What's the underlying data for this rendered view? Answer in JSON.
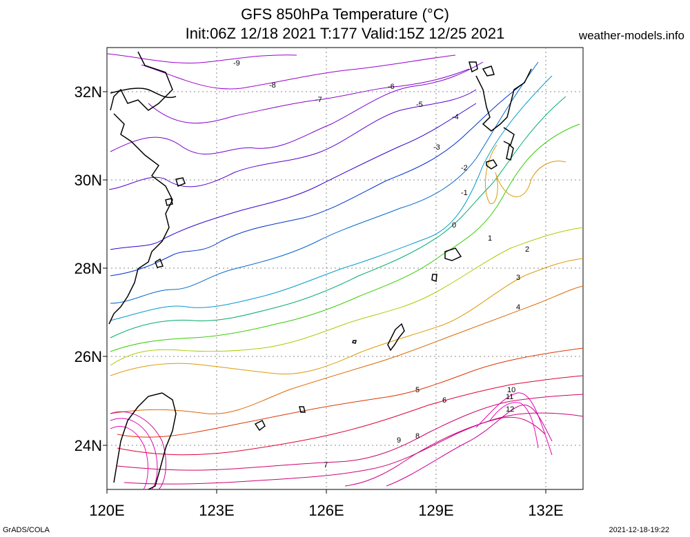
{
  "title": {
    "line1": "GFS 850hPa Temperature (°C)",
    "line2": "Init:06Z 12/18 2021 T:177 Valid:15Z 12/25 2021"
  },
  "site": "weather-models.info",
  "footer": {
    "left": "GrADS/COLA",
    "right": "2021-12-18-19:22"
  },
  "map": {
    "lon_range": [
      120,
      133
    ],
    "lat_range": [
      23,
      33
    ],
    "x_ticks": [
      "120E",
      "123E",
      "126E",
      "129E",
      "132E"
    ],
    "y_ticks": [
      "24N",
      "26N",
      "28N",
      "30N",
      "32N"
    ],
    "gridlines": "dotted at 3° longitude, 2° latitude"
  },
  "contour_labels": [
    "-9",
    "-8",
    "-7",
    "-6",
    "-5",
    "-4",
    "-3",
    "-2",
    "-1",
    "0",
    "1",
    "2",
    "3",
    "4",
    "5",
    "6",
    "7",
    "8",
    "9",
    "10",
    "11",
    "12"
  ],
  "colors": {
    "cold": "#9900cc",
    "cool": "#0033cc",
    "neutral": "#00aa44",
    "warm": "#dd6600",
    "hot": "#cc0099"
  }
}
